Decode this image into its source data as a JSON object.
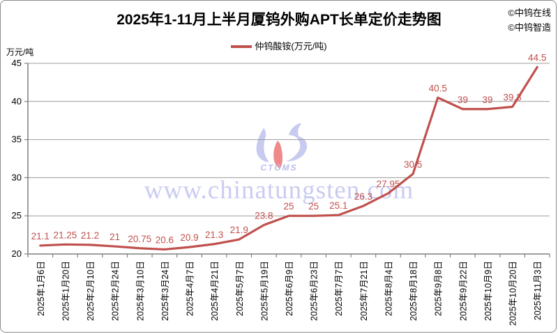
{
  "header": {
    "title": "2025年1-11月上半月厦钨外购APT长单定价走势图",
    "credits": [
      "©中钨在线",
      "©中钨智造"
    ]
  },
  "legend": {
    "label": "仲钨酸铵(万元/吨)",
    "line_color": "#c0504d"
  },
  "axis_unit": "万元/吨",
  "watermark": {
    "url_text": "www.chinatungsten.com",
    "logo_text": "CTOMS",
    "text_color": "#c9ccf1"
  },
  "colors": {
    "line": "#c0504d",
    "data_label": "#c0504d",
    "gridline": "#9b9b9b",
    "axis": "#7f7f7f",
    "tick_label": "#000000"
  },
  "chart_data": {
    "type": "line",
    "title": "2025年1-11月上半月厦钨外购APT长单定价走势图",
    "categories": [
      "2025年1月6日",
      "2025年1月20日",
      "2025年2月10日",
      "2025年2月24日",
      "2025年3月10日",
      "2025年3月24日",
      "2025年4月7日",
      "2025年4月21日",
      "2025年5月7日",
      "2025年5月19日",
      "2025年6月9日",
      "2025年6月23日",
      "2025年7月7日",
      "2025年7月21日",
      "2025年8月4日",
      "2025年8月18日",
      "2025年9月8日",
      "2025年9月22日",
      "2025年10月9日",
      "2025年10月20日",
      "2025年11月3日"
    ],
    "series": [
      {
        "name": "仲钨酸铵(万元/吨)",
        "color": "#c0504d",
        "values": [
          21.1,
          21.25,
          21.2,
          21,
          20.75,
          20.6,
          20.9,
          21.3,
          21.9,
          23.8,
          25,
          25,
          25.1,
          26.3,
          27.95,
          30.5,
          40.5,
          39,
          39,
          39.3,
          44.5
        ]
      }
    ],
    "data_labels": [
      "21.1",
      "21.25",
      "21.2",
      "21",
      "20.75",
      "20.6",
      "20.9",
      "21.3",
      "21.9",
      "23.8",
      "25",
      "25",
      "25.1",
      "26.3",
      "27.95",
      "30.5",
      "40.5",
      "39",
      "39",
      "39.3",
      "44.5"
    ],
    "xlabel": "",
    "ylabel": "万元/吨",
    "ylim": [
      20,
      45
    ],
    "ytick_step": 5,
    "yticks": [
      "20",
      "25",
      "30",
      "35",
      "40",
      "45"
    ],
    "grid": true,
    "legend_position": "top"
  }
}
